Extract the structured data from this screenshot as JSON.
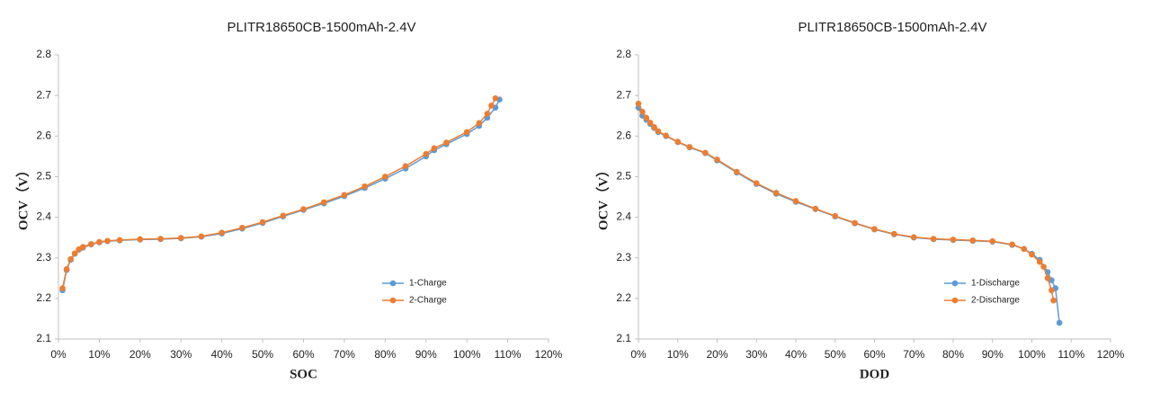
{
  "chart_data": [
    {
      "type": "line",
      "title": "PLITR18650CB-1500mAh-2.4V",
      "xlabel": "SOC",
      "ylabel": "OCV（V）",
      "xlim": [
        0,
        120
      ],
      "ylim": [
        2.1,
        2.8
      ],
      "xticks": [
        {
          "value": 0,
          "label": "0%"
        },
        {
          "value": 10,
          "label": "10%"
        },
        {
          "value": 20,
          "label": "20%"
        },
        {
          "value": 30,
          "label": "30%"
        },
        {
          "value": 40,
          "label": "40%"
        },
        {
          "value": 50,
          "label": "50%"
        },
        {
          "value": 60,
          "label": "60%"
        },
        {
          "value": 70,
          "label": "70%"
        },
        {
          "value": 80,
          "label": "80%"
        },
        {
          "value": 90,
          "label": "90%"
        },
        {
          "value": 100,
          "label": "100%"
        },
        {
          "value": 110,
          "label": "110%"
        },
        {
          "value": 120,
          "label": "120%"
        }
      ],
      "yticks": [
        2.1,
        2.2,
        2.3,
        2.4,
        2.5,
        2.6,
        2.7,
        2.8
      ],
      "legend": "lower right",
      "series": [
        {
          "name": "1-Charge",
          "color": "#5b9bd5",
          "x": [
            1,
            2,
            3,
            4,
            5,
            6,
            8,
            10,
            12,
            15,
            20,
            25,
            30,
            35,
            40,
            45,
            50,
            55,
            60,
            65,
            70,
            75,
            80,
            85,
            90,
            92,
            95,
            100,
            103,
            105,
            107,
            108
          ],
          "values": [
            2.22,
            2.27,
            2.295,
            2.31,
            2.32,
            2.325,
            2.333,
            2.338,
            2.341,
            2.343,
            2.345,
            2.346,
            2.348,
            2.352,
            2.36,
            2.372,
            2.386,
            2.402,
            2.418,
            2.434,
            2.452,
            2.472,
            2.495,
            2.52,
            2.55,
            2.565,
            2.58,
            2.605,
            2.625,
            2.645,
            2.67,
            2.69
          ]
        },
        {
          "name": "2-Charge",
          "color": "#ed7d31",
          "x": [
            1,
            2,
            3,
            4,
            5,
            6,
            8,
            10,
            12,
            15,
            20,
            25,
            30,
            35,
            40,
            45,
            50,
            55,
            60,
            65,
            70,
            75,
            80,
            85,
            90,
            92,
            95,
            100,
            103,
            105,
            106,
            107
          ],
          "values": [
            2.225,
            2.272,
            2.297,
            2.311,
            2.321,
            2.327,
            2.334,
            2.339,
            2.342,
            2.344,
            2.346,
            2.347,
            2.349,
            2.353,
            2.362,
            2.374,
            2.388,
            2.404,
            2.42,
            2.437,
            2.455,
            2.476,
            2.5,
            2.526,
            2.556,
            2.57,
            2.584,
            2.61,
            2.632,
            2.655,
            2.675,
            2.693
          ]
        }
      ]
    },
    {
      "type": "line",
      "title": "PLITR18650CB-1500mAh-2.4V",
      "xlabel": "DOD",
      "ylabel": "OCV（V）",
      "xlim": [
        0,
        120
      ],
      "ylim": [
        2.1,
        2.8
      ],
      "xticks": [
        {
          "value": 0,
          "label": "0%"
        },
        {
          "value": 10,
          "label": "10%"
        },
        {
          "value": 20,
          "label": "20%"
        },
        {
          "value": 30,
          "label": "30%"
        },
        {
          "value": 40,
          "label": "40%"
        },
        {
          "value": 50,
          "label": "50%"
        },
        {
          "value": 60,
          "label": "60%"
        },
        {
          "value": 70,
          "label": "70%"
        },
        {
          "value": 80,
          "label": "80%"
        },
        {
          "value": 90,
          "label": "90%"
        },
        {
          "value": 100,
          "label": "100%"
        },
        {
          "value": 110,
          "label": "110%"
        },
        {
          "value": 120,
          "label": "120%"
        }
      ],
      "yticks": [
        2.1,
        2.2,
        2.3,
        2.4,
        2.5,
        2.6,
        2.7,
        2.8
      ],
      "legend": "lower right",
      "series": [
        {
          "name": "1-Discharge",
          "color": "#5b9bd5",
          "x": [
            0,
            1,
            2,
            3,
            4,
            5,
            7,
            10,
            13,
            17,
            20,
            25,
            30,
            35,
            40,
            45,
            50,
            55,
            60,
            65,
            70,
            75,
            80,
            85,
            90,
            95,
            98,
            100,
            102,
            104,
            105,
            106,
            107
          ],
          "values": [
            2.67,
            2.65,
            2.64,
            2.63,
            2.62,
            2.61,
            2.6,
            2.585,
            2.572,
            2.558,
            2.54,
            2.51,
            2.482,
            2.458,
            2.438,
            2.42,
            2.402,
            2.385,
            2.37,
            2.358,
            2.35,
            2.346,
            2.344,
            2.342,
            2.34,
            2.332,
            2.322,
            2.31,
            2.295,
            2.265,
            2.245,
            2.225,
            2.14
          ]
        },
        {
          "name": "2-Discharge",
          "color": "#ed7d31",
          "x": [
            0,
            1,
            2,
            3,
            4,
            5,
            7,
            10,
            13,
            17,
            20,
            25,
            30,
            35,
            40,
            45,
            50,
            55,
            60,
            65,
            70,
            75,
            80,
            85,
            90,
            95,
            98,
            100,
            102,
            103,
            104,
            105,
            105.5
          ],
          "values": [
            2.68,
            2.66,
            2.645,
            2.633,
            2.622,
            2.612,
            2.601,
            2.586,
            2.573,
            2.559,
            2.542,
            2.512,
            2.484,
            2.46,
            2.44,
            2.421,
            2.403,
            2.386,
            2.371,
            2.359,
            2.351,
            2.347,
            2.345,
            2.343,
            2.341,
            2.333,
            2.322,
            2.308,
            2.29,
            2.278,
            2.25,
            2.22,
            2.195
          ]
        }
      ]
    }
  ]
}
